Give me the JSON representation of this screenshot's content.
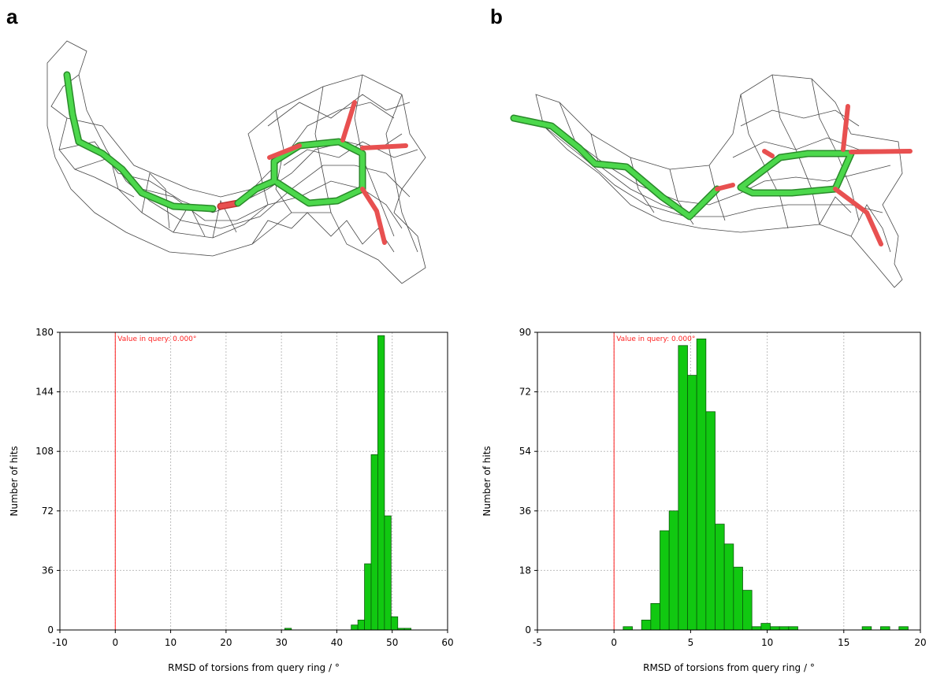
{
  "panels": [
    {
      "letter": "a"
    },
    {
      "letter": "b"
    }
  ],
  "colors": {
    "bar_fill": "#11c811",
    "bar_stroke": "#0a5a0a",
    "query_line": "#ff2020",
    "grid": "#bdbdbd",
    "carbon": "#3fcf3f",
    "oxygen": "#e03030",
    "mesh": "#333333"
  },
  "chart_data": [
    {
      "type": "bar",
      "title": "",
      "xlabel": "RMSD of torsions from query ring / °",
      "ylabel": "Number of hits",
      "xlim": [
        -10,
        60
      ],
      "ylim": [
        0,
        180
      ],
      "xticks": [
        -10,
        0,
        10,
        20,
        30,
        40,
        50,
        60
      ],
      "yticks": [
        0,
        36,
        72,
        108,
        144,
        180
      ],
      "grid": true,
      "annotation": {
        "x": 0,
        "text": "Value in query: 0.000°"
      },
      "bin_width": 1.2,
      "bins": [
        {
          "x0": 30.6,
          "value": 1
        },
        {
          "x0": 42.6,
          "value": 3
        },
        {
          "x0": 43.8,
          "value": 6
        },
        {
          "x0": 45.0,
          "value": 40
        },
        {
          "x0": 46.2,
          "value": 106
        },
        {
          "x0": 47.4,
          "value": 178
        },
        {
          "x0": 48.6,
          "value": 69
        },
        {
          "x0": 49.8,
          "value": 8
        },
        {
          "x0": 51.0,
          "value": 1
        },
        {
          "x0": 52.2,
          "value": 1
        }
      ]
    },
    {
      "type": "bar",
      "title": "",
      "xlabel": "RMSD of torsions from query ring / °",
      "ylabel": "Number of hits",
      "xlim": [
        -5,
        20
      ],
      "ylim": [
        0,
        90
      ],
      "xticks": [
        -5,
        0,
        5,
        10,
        15,
        20
      ],
      "yticks": [
        0,
        18,
        36,
        54,
        72,
        90
      ],
      "grid": true,
      "annotation": {
        "x": 0,
        "text": "Value in query: 0.000°"
      },
      "bin_width": 0.6,
      "bins": [
        {
          "x0": 0.6,
          "value": 1
        },
        {
          "x0": 1.8,
          "value": 3
        },
        {
          "x0": 2.4,
          "value": 8
        },
        {
          "x0": 3.0,
          "value": 30
        },
        {
          "x0": 3.6,
          "value": 36
        },
        {
          "x0": 4.2,
          "value": 86
        },
        {
          "x0": 4.8,
          "value": 77
        },
        {
          "x0": 5.4,
          "value": 88
        },
        {
          "x0": 6.0,
          "value": 66
        },
        {
          "x0": 6.6,
          "value": 32
        },
        {
          "x0": 7.2,
          "value": 26
        },
        {
          "x0": 7.8,
          "value": 19
        },
        {
          "x0": 8.4,
          "value": 12
        },
        {
          "x0": 9.0,
          "value": 1
        },
        {
          "x0": 9.6,
          "value": 2
        },
        {
          "x0": 10.2,
          "value": 1
        },
        {
          "x0": 10.8,
          "value": 1
        },
        {
          "x0": 11.4,
          "value": 1
        },
        {
          "x0": 16.2,
          "value": 1
        },
        {
          "x0": 17.4,
          "value": 1
        },
        {
          "x0": 18.6,
          "value": 1
        }
      ]
    }
  ]
}
